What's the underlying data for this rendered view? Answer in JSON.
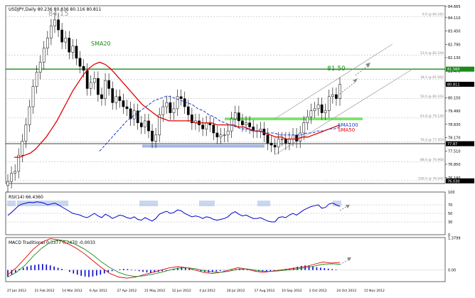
{
  "chart_data": [
    {
      "type": "candlestick",
      "title": "USDJPY,Daily 80.236 80.836 80.116 80.811",
      "symbol": "USDJPY",
      "timeframe": "Daily",
      "ohlc": {
        "open": 80.236,
        "high": 80.836,
        "low": 80.116,
        "close": 80.811
      },
      "ylim": [
        75.9,
        84.7
      ],
      "y_ticks": [
        84.665,
        84.11,
        83.45,
        82.79,
        82.13,
        81.47,
        80.81,
        80.15,
        79.49,
        78.83,
        78.17,
        77.51,
        76.85,
        76.19
      ],
      "price_tags": [
        {
          "label": "81.560",
          "value": 81.56,
          "color": "#1a8a1a"
        },
        {
          "label": "80.811",
          "value": 80.811,
          "color": "#000000"
        },
        {
          "label": "77.87",
          "value": 77.87,
          "color": "#000000"
        },
        {
          "label": "76.030",
          "value": 76.03,
          "color": "#000000"
        }
      ],
      "x_labels": [
        "27 Jan 2012",
        "21 Feb 2012",
        "14 Mar 2012",
        "6 Apr 2012",
        "27 Apr 2012",
        "21 May 2012",
        "12 Jun 2012",
        "4 Jul 2012",
        "26 Jul 2012",
        "17 Aug 2012",
        "10 Sep 2012",
        "2 Oct 2012",
        "24 Oct 2012",
        "15 Nov 2012"
      ],
      "fibonacci": [
        {
          "label": "0.0 @ 84.165",
          "value": 84.165
        },
        {
          "label": "23.6 @ 82.249",
          "value": 82.249
        },
        {
          "label": "38.2 @ 81.062",
          "value": 81.062
        },
        {
          "label": "50.0 @ 80.103",
          "value": 80.103
        },
        {
          "label": "61.8 @ 79.144",
          "value": 79.144
        },
        {
          "label": "76.4 @ 77.959",
          "value": 77.959
        },
        {
          "label": "88.6 @ 76.968",
          "value": 76.968
        },
        {
          "label": "100.0 @ 76.042",
          "value": 76.042
        }
      ],
      "resistance_line": 81.56,
      "support_line": 77.87,
      "annotations": {
        "high": "84.15",
        "target": "81.50",
        "sma20": "SMA20",
        "sma100": "SMA100",
        "sma50": "SMA50"
      },
      "colors": {
        "sma20": "#1a8a1a",
        "sma50": "#e00000",
        "sma100": "#2040c0",
        "resistance": "#1a8a1a",
        "support_box": "#9fb7ea",
        "support_zone": "#7ee36e",
        "channel": "#999999",
        "candles": "#000000"
      },
      "close_series": [
        76.0,
        76.4,
        76.5,
        77.3,
        78.0,
        78.8,
        79.7,
        80.7,
        81.4,
        81.9,
        82.6,
        83.1,
        83.7,
        84.0,
        83.5,
        82.9,
        83.1,
        82.4,
        82.7,
        82.1,
        81.7,
        81.5,
        80.6,
        80.9,
        81.1,
        80.3,
        80.1,
        81.0,
        80.6,
        79.9,
        80.2,
        80.0,
        79.7,
        79.6,
        79.1,
        79.5,
        78.9,
        78.7,
        79.0,
        78.5,
        78.0,
        78.3,
        79.3,
        79.7,
        79.9,
        79.4,
        79.6,
        80.2,
        80.1,
        79.7,
        79.3,
        78.9,
        79.0,
        78.8,
        78.6,
        78.9,
        78.8,
        78.4,
        78.2,
        78.3,
        78.3,
        78.5,
        79.1,
        79.4,
        79.0,
        78.8,
        78.9,
        78.7,
        78.5,
        78.5,
        78.6,
        78.3,
        77.9,
        77.8,
        77.7,
        78.1,
        78.1,
        77.9,
        78.1,
        78.3,
        78.0,
        78.4,
        78.9,
        79.2,
        79.5,
        79.6,
        79.8,
        79.4,
        79.5,
        80.2,
        80.3,
        80.1,
        80.8
      ],
      "sma20_approx": [
        77.5,
        77.4,
        77.5,
        77.6,
        77.8,
        78.1,
        78.5,
        78.9,
        79.4,
        79.9,
        80.4,
        80.9,
        81.4,
        81.9,
        82.3,
        82.6,
        82.8,
        82.9,
        82.8,
        82.6,
        82.3,
        81.9,
        81.5,
        81.2,
        81.0,
        80.8,
        80.6,
        80.5,
        80.4,
        80.2,
        80.0,
        79.8,
        79.6,
        79.4,
        79.2,
        79.0,
        78.8,
        78.7,
        78.6,
        78.6,
        78.6,
        78.7,
        78.9,
        79.1,
        79.3,
        79.4,
        79.5,
        79.5,
        79.4,
        79.2,
        79.0,
        78.9,
        78.8,
        78.7,
        78.6,
        78.6,
        78.6,
        78.7,
        78.7,
        78.8,
        78.8,
        78.7,
        78.6,
        78.5,
        78.4,
        78.3,
        78.2,
        78.2,
        78.1,
        78.0,
        78.0,
        77.9,
        77.9,
        78.0,
        78.1,
        78.3,
        78.5,
        78.7,
        78.9,
        79.1,
        79.3,
        79.5,
        79.6,
        79.7,
        79.8,
        79.9,
        79.9,
        80.0,
        80.1,
        80.2,
        80.3,
        80.4,
        80.5
      ],
      "sma50_approx": [
        77.2,
        77.2,
        77.3,
        77.4,
        77.6,
        77.9,
        78.2,
        78.6,
        79.0,
        79.5,
        80.0,
        80.5,
        80.9,
        81.3,
        81.6,
        81.8,
        81.9,
        81.8,
        81.6,
        81.3,
        81.0,
        80.7,
        80.4,
        80.1,
        79.8,
        79.6,
        79.4,
        79.2,
        79.1,
        79.0,
        79.0,
        79.0,
        79.0,
        79.0,
        78.9,
        78.9,
        78.9,
        78.9,
        78.8,
        78.8,
        78.8,
        78.8,
        78.7,
        78.7,
        78.6,
        78.5,
        78.5,
        78.4,
        78.3,
        78.2,
        78.2,
        78.1,
        78.1,
        78.1,
        78.2,
        78.2,
        78.3,
        78.4,
        78.5,
        78.6,
        78.7,
        78.8
      ],
      "sma100_approx": [
        77.5,
        77.8,
        78.1,
        78.4,
        78.7,
        79.0,
        79.2,
        79.4,
        79.6,
        79.8,
        80.0,
        80.1,
        80.2,
        80.2,
        80.1,
        80.0,
        79.9,
        79.8,
        79.6,
        79.5,
        79.3,
        79.2,
        79.0,
        78.9,
        78.8,
        78.7,
        78.6,
        78.6,
        78.5,
        78.5,
        78.4,
        78.4,
        78.4,
        78.3,
        78.3,
        78.3,
        78.3,
        78.3,
        78.4,
        78.4,
        78.5,
        78.5,
        78.6,
        78.6,
        78.7
      ]
    },
    {
      "type": "line",
      "title": "RSI(14) 66.4360",
      "ylim": [
        0,
        100
      ],
      "y_ticks": [
        100,
        70,
        50,
        30,
        0
      ],
      "levels": [
        70,
        50,
        30
      ],
      "rsi": [
        45,
        52,
        60,
        68,
        72,
        74,
        76,
        75,
        77,
        76,
        74,
        70,
        72,
        74,
        70,
        65,
        60,
        55,
        50,
        48,
        46,
        42,
        40,
        45,
        50,
        44,
        40,
        48,
        44,
        38,
        42,
        46,
        44,
        40,
        38,
        42,
        36,
        34,
        40,
        36,
        32,
        38,
        48,
        52,
        55,
        50,
        52,
        58,
        56,
        50,
        46,
        42,
        44,
        42,
        38,
        42,
        40,
        36,
        34,
        36,
        38,
        42,
        50,
        54,
        48,
        44,
        46,
        42,
        38,
        38,
        40,
        36,
        32,
        30,
        30,
        40,
        42,
        40,
        46,
        50,
        46,
        52,
        58,
        62,
        66,
        68,
        70,
        62,
        64,
        72,
        74,
        70,
        66.4
      ],
      "colors": {
        "rsi": "#0000cc",
        "highlight": "#9fb7ea"
      }
    },
    {
      "type": "bar",
      "title": "MACD Traditional 0.3377 0.2470 -0.0033",
      "ylim": [
        -0.5,
        1.4
      ],
      "y_ticks": [
        1.3799,
        0.0
      ],
      "tick_labels": [
        "1.3799",
        "0.00"
      ],
      "colors": {
        "histogram": "#0000cc",
        "macd": "#e00000",
        "signal": "#1a8a1a"
      },
      "histogram": [
        -0.3,
        -0.2,
        -0.1,
        0.05,
        0.1,
        0.15,
        0.2,
        0.22,
        0.25,
        0.26,
        0.24,
        0.2,
        0.15,
        0.1,
        0.05,
        0.0,
        -0.08,
        -0.15,
        -0.2,
        -0.25,
        -0.28,
        -0.3,
        -0.28,
        -0.24,
        -0.2,
        -0.15,
        -0.1,
        -0.05,
        0.0,
        0.03,
        0.05,
        0.04,
        0.02,
        -0.02,
        -0.05,
        -0.08,
        -0.1,
        -0.12,
        -0.1,
        -0.08,
        -0.05,
        -0.02,
        0.02,
        0.06,
        0.1,
        0.12,
        0.1,
        0.06,
        0.02,
        -0.02,
        -0.05,
        -0.08,
        -0.1,
        -0.08,
        -0.06,
        -0.04,
        -0.02,
        0.0,
        0.02,
        0.04,
        0.06,
        0.05,
        0.03,
        0.0,
        -0.03,
        -0.05,
        -0.06,
        -0.05,
        -0.04,
        -0.03,
        -0.02,
        0.0,
        0.03,
        0.06,
        0.1,
        0.14,
        0.18,
        0.2,
        0.18,
        0.15,
        0.12,
        0.1,
        0.08,
        0.06,
        0.04,
        0.02,
        0.0
      ],
      "macd": [
        -0.2,
        0.1,
        0.5,
        0.9,
        1.2,
        1.35,
        1.3,
        1.15,
        0.95,
        0.7,
        0.4,
        0.1,
        -0.15,
        -0.3,
        -0.35,
        -0.3,
        -0.2,
        -0.1,
        0.0,
        0.1,
        0.15,
        0.1,
        0.0,
        -0.1,
        -0.15,
        -0.1,
        0.0,
        0.1,
        0.05,
        -0.05,
        -0.1,
        -0.05,
        0.0,
        0.05,
        0.1,
        0.15,
        0.25,
        0.35,
        0.3,
        0.33
      ],
      "signal": [
        -0.3,
        -0.1,
        0.2,
        0.6,
        0.95,
        1.2,
        1.3,
        1.25,
        1.1,
        0.9,
        0.65,
        0.35,
        0.1,
        -0.1,
        -0.22,
        -0.28,
        -0.25,
        -0.18,
        -0.1,
        0.0,
        0.08,
        0.1,
        0.06,
        -0.02,
        -0.08,
        -0.1,
        -0.05,
        0.03,
        0.05,
        0.0,
        -0.06,
        -0.06,
        -0.03,
        0.01,
        0.05,
        0.1,
        0.17,
        0.25,
        0.27,
        0.25
      ]
    }
  ]
}
